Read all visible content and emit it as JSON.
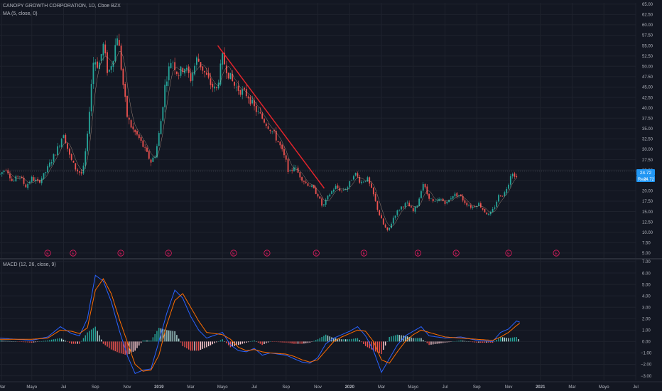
{
  "header": {
    "symbol": "CANOPY GROWTH CORPORATION, 1D, Cboe BZX",
    "ma_label": "MA (5, close, 0)"
  },
  "macd_header": {
    "label": "MACD (12, 26, close, 9)"
  },
  "price_tag": {
    "label": "Real",
    "value": "24.72",
    "last": "24.72"
  },
  "colors": {
    "background": "#131722",
    "grid": "#1e222d",
    "up": "#26a69a",
    "down": "#ef5350",
    "ma": "#e0b8a0",
    "trendline": "#e3242b",
    "macd": "#2962ff",
    "signal": "#ff6d00",
    "axis_text": "#b2b5be",
    "price_tag": "#2196f3",
    "earnings": "#e91e63"
  },
  "earnings_marker_label": "E",
  "chart_data": [
    {
      "type": "candlestick",
      "title": "CANOPY GROWTH CORPORATION, 1D, Cboe BZX",
      "y_ticks": [
        65.0,
        62.5,
        60.0,
        57.5,
        55.0,
        52.5,
        50.0,
        47.5,
        45.0,
        42.5,
        40.0,
        37.5,
        35.0,
        32.5,
        30.0,
        27.5,
        25.0,
        22.5,
        20.0,
        17.5,
        15.0,
        12.5,
        10.0,
        7.5,
        5.0
      ],
      "ylim": [
        4.3,
        65.3
      ],
      "x_ticks": [
        {
          "label": "Mar",
          "t": -1.9
        },
        {
          "label": "Mayo",
          "t": 0.0
        },
        {
          "label": "Jul",
          "t": 2.0
        },
        {
          "label": "Sep",
          "t": 4.0
        },
        {
          "label": "Nov",
          "t": 6.0
        },
        {
          "label": "2019",
          "t": 8.0
        },
        {
          "label": "Mar",
          "t": 10.0
        },
        {
          "label": "Mayo",
          "t": 12.0
        },
        {
          "label": "Jul",
          "t": 14.0
        },
        {
          "label": "Sep",
          "t": 16.0
        },
        {
          "label": "Nov",
          "t": 18.0
        },
        {
          "label": "2020",
          "t": 20.0
        },
        {
          "label": "Mar",
          "t": 22.0
        },
        {
          "label": "Mayo",
          "t": 24.0
        },
        {
          "label": "Jul",
          "t": 26.0
        },
        {
          "label": "Sep",
          "t": 28.0
        },
        {
          "label": "Nov",
          "t": 30.0
        },
        {
          "label": "2021",
          "t": 32.0
        },
        {
          "label": "Mar",
          "t": 34.0
        },
        {
          "label": "Mayo",
          "t": 36.0
        },
        {
          "label": "Jul",
          "t": 38.0
        }
      ],
      "x_domain": [
        -2.0,
        38.0
      ],
      "price_path": [
        [
          -2.0,
          24
        ],
        [
          -1.6,
          25.5
        ],
        [
          -1.2,
          22
        ],
        [
          -0.8,
          24
        ],
        [
          -0.4,
          21
        ],
        [
          0.0,
          23
        ],
        [
          0.4,
          22
        ],
        [
          0.8,
          24
        ],
        [
          1.2,
          27
        ],
        [
          1.6,
          30
        ],
        [
          2.0,
          34
        ],
        [
          2.4,
          28
        ],
        [
          2.8,
          25
        ],
        [
          3.2,
          24
        ],
        [
          3.5,
          33
        ],
        [
          3.7,
          44
        ],
        [
          3.9,
          52
        ],
        [
          4.2,
          50
        ],
        [
          4.5,
          55
        ],
        [
          4.8,
          48
        ],
        [
          5.1,
          52
        ],
        [
          5.4,
          58
        ],
        [
          5.7,
          47
        ],
        [
          6.0,
          38
        ],
        [
          6.3,
          35
        ],
        [
          6.7,
          33
        ],
        [
          7.1,
          30
        ],
        [
          7.5,
          27
        ],
        [
          7.8,
          29
        ],
        [
          8.1,
          36
        ],
        [
          8.4,
          46
        ],
        [
          8.8,
          52
        ],
        [
          9.2,
          48
        ],
        [
          9.6,
          50
        ],
        [
          10.0,
          47
        ],
        [
          10.4,
          52
        ],
        [
          10.8,
          49
        ],
        [
          11.2,
          46
        ],
        [
          11.6,
          44
        ],
        [
          12.0,
          52
        ],
        [
          12.4,
          48
        ],
        [
          12.8,
          45
        ],
        [
          13.2,
          44
        ],
        [
          13.6,
          43
        ],
        [
          14.0,
          40
        ],
        [
          14.4,
          38
        ],
        [
          14.8,
          36
        ],
        [
          15.2,
          34
        ],
        [
          15.6,
          31
        ],
        [
          16.0,
          27
        ],
        [
          16.2,
          24
        ],
        [
          16.5,
          26
        ],
        [
          16.8,
          24
        ],
        [
          17.2,
          22
        ],
        [
          17.6,
          21
        ],
        [
          18.0,
          19
        ],
        [
          18.3,
          16
        ],
        [
          18.7,
          19
        ],
        [
          19.1,
          21
        ],
        [
          19.5,
          20
        ],
        [
          19.9,
          21
        ],
        [
          20.3,
          24.5
        ],
        [
          20.7,
          22
        ],
        [
          21.1,
          23
        ],
        [
          21.5,
          19
        ],
        [
          21.8,
          15
        ],
        [
          22.1,
          12
        ],
        [
          22.4,
          10
        ],
        [
          22.8,
          14
        ],
        [
          23.2,
          16
        ],
        [
          23.6,
          17
        ],
        [
          24.0,
          15
        ],
        [
          24.3,
          17
        ],
        [
          24.6,
          22
        ],
        [
          24.9,
          19
        ],
        [
          25.3,
          17
        ],
        [
          25.7,
          18
        ],
        [
          26.1,
          17
        ],
        [
          26.5,
          19
        ],
        [
          26.9,
          19
        ],
        [
          27.3,
          17
        ],
        [
          27.7,
          16
        ],
        [
          28.1,
          17
        ],
        [
          28.5,
          15
        ],
        [
          28.8,
          14
        ],
        [
          29.1,
          16
        ],
        [
          29.4,
          19
        ],
        [
          29.7,
          19
        ],
        [
          30.0,
          22
        ],
        [
          30.2,
          25
        ],
        [
          30.4,
          23
        ],
        [
          30.6,
          24.7
        ]
      ],
      "trendline": [
        [
          11.7,
          55.0
        ],
        [
          18.4,
          20.6
        ]
      ],
      "current_price_line": 24.72,
      "earnings_markers": [
        1.0,
        2.6,
        5.6,
        8.6,
        12.7,
        14.8,
        17.9,
        20.9,
        24.3,
        26.7,
        30.0,
        33.0
      ]
    },
    {
      "type": "macd",
      "title": "MACD (12, 26, close, 9)",
      "y_ticks": [
        7.0,
        6.0,
        5.0,
        4.0,
        3.0,
        2.0,
        1.0,
        0.0,
        -1.0,
        -2.0,
        -3.0
      ],
      "ylim": [
        -3.4,
        7.0
      ],
      "macd_path": [
        [
          -2.0,
          0.3
        ],
        [
          -1.0,
          0.2
        ],
        [
          0.0,
          0.1
        ],
        [
          1.0,
          0.4
        ],
        [
          1.8,
          1.3
        ],
        [
          2.5,
          0.7
        ],
        [
          3.0,
          0.5
        ],
        [
          3.5,
          2.0
        ],
        [
          4.0,
          5.8
        ],
        [
          4.5,
          5.3
        ],
        [
          5.0,
          3.5
        ],
        [
          5.5,
          1.0
        ],
        [
          6.0,
          -1.2
        ],
        [
          6.5,
          -2.8
        ],
        [
          7.0,
          -2.5
        ],
        [
          7.5,
          -2.4
        ],
        [
          8.0,
          0.0
        ],
        [
          8.5,
          2.5
        ],
        [
          9.0,
          4.5
        ],
        [
          9.5,
          3.8
        ],
        [
          10.0,
          2.2
        ],
        [
          10.5,
          1.0
        ],
        [
          11.0,
          0.3
        ],
        [
          12.0,
          0.8
        ],
        [
          12.5,
          -0.3
        ],
        [
          13.0,
          -0.8
        ],
        [
          13.5,
          -0.9
        ],
        [
          14.0,
          -0.6
        ],
        [
          14.5,
          -1.2
        ],
        [
          15.0,
          -1.0
        ],
        [
          16.0,
          -1.2
        ],
        [
          16.5,
          -1.5
        ],
        [
          17.0,
          -1.8
        ],
        [
          17.5,
          -1.9
        ],
        [
          18.0,
          -1.4
        ],
        [
          18.5,
          -0.2
        ],
        [
          19.0,
          0.3
        ],
        [
          19.5,
          0.6
        ],
        [
          20.0,
          0.9
        ],
        [
          20.5,
          1.3
        ],
        [
          21.0,
          0.5
        ],
        [
          21.5,
          -0.8
        ],
        [
          22.0,
          -2.7
        ],
        [
          22.5,
          -1.5
        ],
        [
          23.0,
          -0.3
        ],
        [
          23.5,
          0.5
        ],
        [
          24.0,
          0.9
        ],
        [
          24.5,
          1.3
        ],
        [
          25.0,
          0.5
        ],
        [
          26.0,
          0.3
        ],
        [
          27.0,
          0.4
        ],
        [
          28.0,
          0.1
        ],
        [
          29.0,
          0.0
        ],
        [
          29.5,
          0.8
        ],
        [
          30.0,
          1.1
        ],
        [
          30.5,
          1.8
        ],
        [
          30.7,
          1.7
        ]
      ],
      "signal_path": [
        [
          -2.0,
          0.2
        ],
        [
          -1.0,
          0.2
        ],
        [
          0.0,
          0.2
        ],
        [
          1.0,
          0.3
        ],
        [
          1.8,
          1.0
        ],
        [
          2.5,
          0.9
        ],
        [
          3.0,
          0.7
        ],
        [
          3.5,
          1.2
        ],
        [
          4.0,
          4.5
        ],
        [
          4.5,
          5.5
        ],
        [
          5.0,
          4.2
        ],
        [
          5.5,
          2.0
        ],
        [
          6.0,
          0.0
        ],
        [
          6.5,
          -2.0
        ],
        [
          7.0,
          -2.6
        ],
        [
          7.5,
          -2.5
        ],
        [
          8.0,
          -1.2
        ],
        [
          8.5,
          1.5
        ],
        [
          9.0,
          3.6
        ],
        [
          9.5,
          4.2
        ],
        [
          10.0,
          3.0
        ],
        [
          10.5,
          1.8
        ],
        [
          11.0,
          0.8
        ],
        [
          12.0,
          0.6
        ],
        [
          12.5,
          0.2
        ],
        [
          13.0,
          -0.5
        ],
        [
          13.5,
          -0.8
        ],
        [
          14.0,
          -0.7
        ],
        [
          14.5,
          -0.9
        ],
        [
          15.0,
          -1.0
        ],
        [
          16.0,
          -1.1
        ],
        [
          16.5,
          -1.3
        ],
        [
          17.0,
          -1.6
        ],
        [
          17.5,
          -1.8
        ],
        [
          18.0,
          -1.6
        ],
        [
          18.5,
          -0.8
        ],
        [
          19.0,
          0.0
        ],
        [
          19.5,
          0.4
        ],
        [
          20.0,
          0.7
        ],
        [
          20.5,
          1.0
        ],
        [
          21.0,
          0.9
        ],
        [
          21.5,
          0.0
        ],
        [
          22.0,
          -1.6
        ],
        [
          22.5,
          -1.9
        ],
        [
          23.0,
          -0.9
        ],
        [
          23.5,
          0.0
        ],
        [
          24.0,
          0.6
        ],
        [
          24.5,
          1.0
        ],
        [
          25.0,
          0.8
        ],
        [
          26.0,
          0.4
        ],
        [
          27.0,
          0.3
        ],
        [
          28.0,
          0.2
        ],
        [
          29.0,
          0.1
        ],
        [
          29.5,
          0.4
        ],
        [
          30.0,
          0.8
        ],
        [
          30.5,
          1.4
        ],
        [
          30.7,
          1.6
        ]
      ]
    }
  ]
}
